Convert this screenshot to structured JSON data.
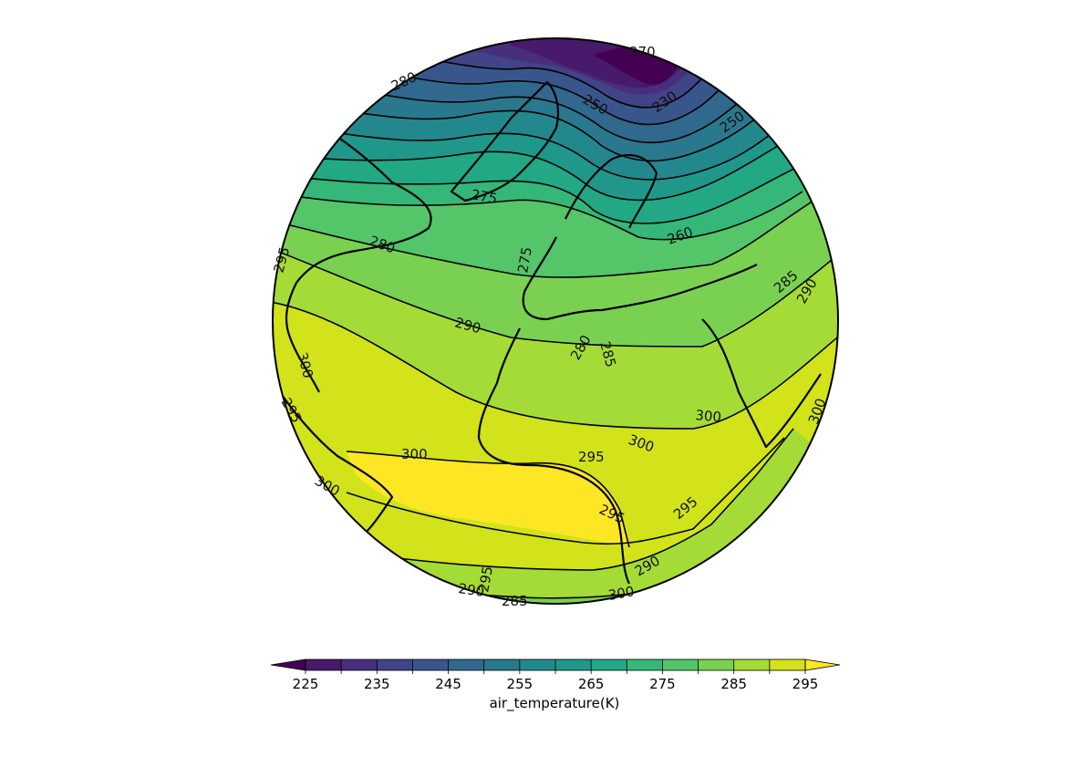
{
  "map": {
    "variable_label": "air_temperature(K)",
    "projection": "orthographic",
    "colormap": "viridis",
    "colorbar": {
      "levels": [
        220,
        225,
        230,
        235,
        240,
        245,
        250,
        255,
        260,
        265,
        270,
        275,
        280,
        285,
        290,
        295,
        300
      ],
      "tick_labels": [
        "225",
        "235",
        "245",
        "255",
        "265",
        "275",
        "285",
        "295"
      ],
      "extend": "both",
      "colors": [
        "#440154",
        "#481a6c",
        "#472f7d",
        "#414487",
        "#39568c",
        "#31688e",
        "#2a788e",
        "#23888e",
        "#1f988b",
        "#22a884",
        "#35b779",
        "#54c568",
        "#7ad151",
        "#a5db36",
        "#d2e21b",
        "#fde725"
      ]
    },
    "contour_labels": [
      {
        "text": "270"
      },
      {
        "text": "280"
      },
      {
        "text": "250"
      },
      {
        "text": "230"
      },
      {
        "text": "250"
      },
      {
        "text": "275"
      },
      {
        "text": "280"
      },
      {
        "text": "260"
      },
      {
        "text": "275"
      },
      {
        "text": "295"
      },
      {
        "text": "290"
      },
      {
        "text": "285"
      },
      {
        "text": "280"
      },
      {
        "text": "285"
      },
      {
        "text": "290"
      },
      {
        "text": "300"
      },
      {
        "text": "295"
      },
      {
        "text": "300"
      },
      {
        "text": "300"
      },
      {
        "text": "300"
      },
      {
        "text": "295"
      },
      {
        "text": "300"
      },
      {
        "text": "300"
      },
      {
        "text": "295"
      },
      {
        "text": "295"
      },
      {
        "text": "290"
      },
      {
        "text": "290"
      },
      {
        "text": "285"
      },
      {
        "text": "295"
      },
      {
        "text": "300"
      }
    ]
  }
}
